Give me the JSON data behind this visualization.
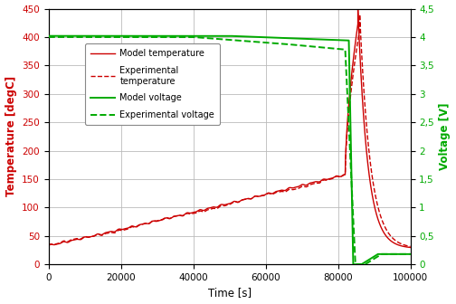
{
  "title": "",
  "xlabel": "Time [s]",
  "ylabel_left": "Temperature [degC]",
  "ylabel_right": "Voltage [V]",
  "xlim": [
    0,
    100000
  ],
  "ylim_left": [
    0,
    450
  ],
  "ylim_right": [
    0,
    4.5
  ],
  "xticks": [
    0,
    20000,
    40000,
    60000,
    80000,
    100000
  ],
  "yticks_left": [
    0,
    50,
    100,
    150,
    200,
    250,
    300,
    350,
    400,
    450
  ],
  "yticks_right": [
    0,
    0.5,
    1.0,
    1.5,
    2.0,
    2.5,
    3.0,
    3.5,
    4.0,
    4.5
  ],
  "color_red": "#cc0000",
  "color_green": "#00aa00",
  "legend_entries": [
    "Model temperature",
    "Experimental\ntemperature",
    "Model voltage",
    "Experimental voltage"
  ],
  "background_color": "#ffffff",
  "grid_color": "#bbbbbb",
  "figsize": [
    5.04,
    3.36
  ],
  "dpi": 100
}
